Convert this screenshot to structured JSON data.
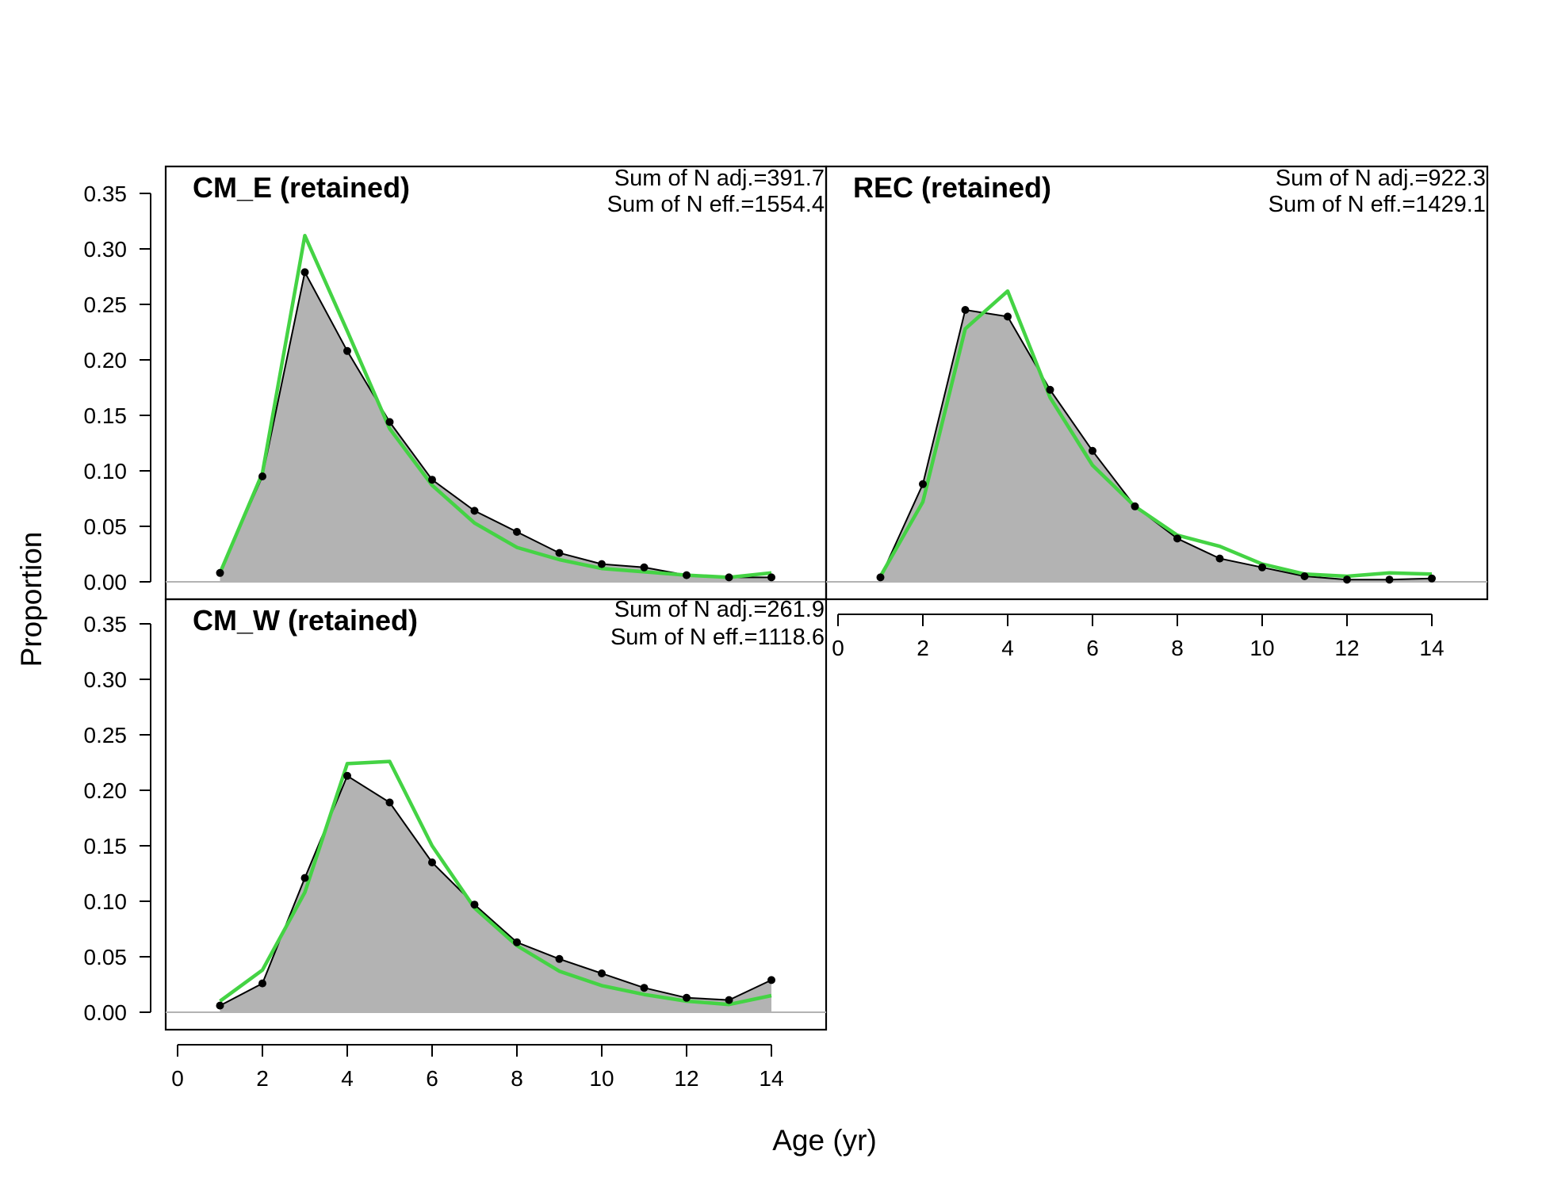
{
  "figure": {
    "xlabel": "Age (yr)",
    "ylabel": "Proportion"
  },
  "colors": {
    "observed_fill": "#b3b3b3",
    "observed_line": "#000000",
    "expected_line": "#44d344",
    "zero_line": "#b3b3b3"
  },
  "chart_data": [
    {
      "type": "area",
      "title": "CM_E (retained)",
      "annotations": [
        "Sum of N adj.=391.7",
        "Sum of N eff.=1554.4"
      ],
      "xlim": [
        0,
        15
      ],
      "ylim": [
        0,
        0.35
      ],
      "x_ticks": [
        "0",
        "2",
        "4",
        "6",
        "8",
        "10",
        "12",
        "14"
      ],
      "y_ticks": [
        "0.00",
        "0.05",
        "0.10",
        "0.15",
        "0.20",
        "0.25",
        "0.30",
        "0.35"
      ],
      "x": [
        1,
        2,
        3,
        4,
        5,
        6,
        7,
        8,
        9,
        10,
        11,
        12,
        13,
        14
      ],
      "series": [
        {
          "role": "observed",
          "values": [
            0.008,
            0.095,
            0.279,
            0.208,
            0.144,
            0.092,
            0.064,
            0.045,
            0.026,
            0.016,
            0.013,
            0.006,
            0.004,
            0.004
          ]
        },
        {
          "role": "expected",
          "values": [
            0.008,
            0.098,
            0.312,
            0.226,
            0.138,
            0.087,
            0.053,
            0.031,
            0.02,
            0.012,
            0.009,
            0.006,
            0.004,
            0.008
          ]
        }
      ]
    },
    {
      "type": "area",
      "title": "REC (retained)",
      "annotations": [
        "Sum of N adj.=922.3",
        "Sum of N eff.=1429.1"
      ],
      "xlim": [
        0,
        15
      ],
      "ylim": [
        0,
        0.35
      ],
      "x_ticks": [
        "0",
        "2",
        "4",
        "6",
        "8",
        "10",
        "12",
        "14"
      ],
      "y_ticks": [],
      "x": [
        1,
        2,
        3,
        4,
        5,
        6,
        7,
        8,
        9,
        10,
        11,
        12,
        13,
        14
      ],
      "series": [
        {
          "role": "observed",
          "values": [
            0.004,
            0.088,
            0.245,
            0.239,
            0.173,
            0.118,
            0.068,
            0.039,
            0.021,
            0.013,
            0.005,
            0.002,
            0.002,
            0.003
          ]
        },
        {
          "role": "expected",
          "values": [
            0.005,
            0.072,
            0.228,
            0.262,
            0.166,
            0.105,
            0.068,
            0.042,
            0.032,
            0.016,
            0.007,
            0.005,
            0.008,
            0.007
          ]
        }
      ]
    },
    {
      "type": "area",
      "title": "CM_W (retained)",
      "annotations": [
        "Sum of N adj.=261.9",
        "Sum of N eff.=1118.6"
      ],
      "xlim": [
        0,
        15
      ],
      "ylim": [
        0,
        0.35
      ],
      "x_ticks": [
        "0",
        "2",
        "4",
        "6",
        "8",
        "10",
        "12",
        "14"
      ],
      "y_ticks": [
        "0.00",
        "0.05",
        "0.10",
        "0.15",
        "0.20",
        "0.25",
        "0.30",
        "0.35"
      ],
      "x": [
        1,
        2,
        3,
        4,
        5,
        6,
        7,
        8,
        9,
        10,
        11,
        12,
        13,
        14
      ],
      "series": [
        {
          "role": "observed",
          "values": [
            0.006,
            0.026,
            0.121,
            0.213,
            0.189,
            0.135,
            0.097,
            0.063,
            0.048,
            0.035,
            0.022,
            0.013,
            0.011,
            0.029
          ]
        },
        {
          "role": "expected",
          "values": [
            0.01,
            0.038,
            0.108,
            0.224,
            0.226,
            0.15,
            0.094,
            0.06,
            0.037,
            0.024,
            0.016,
            0.01,
            0.007,
            0.015
          ]
        }
      ]
    }
  ]
}
